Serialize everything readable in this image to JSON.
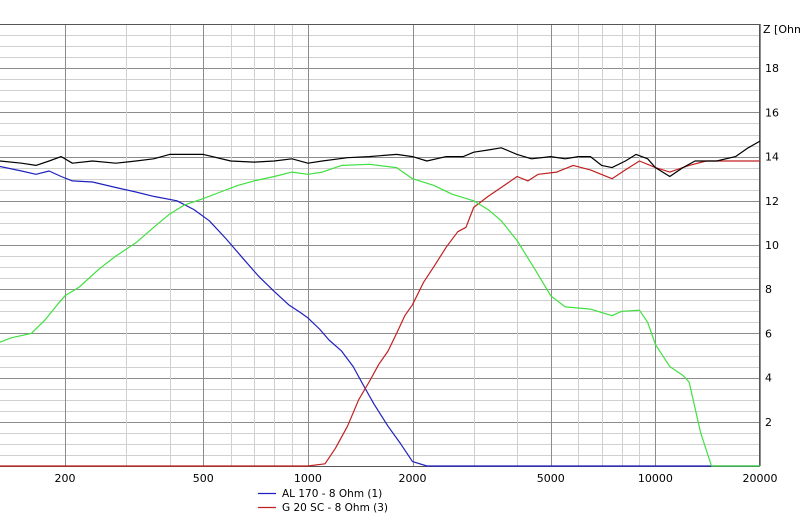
{
  "chart_data": {
    "type": "line",
    "title": "",
    "xlabel": "",
    "ylabel": "Z [Ohm]",
    "x_scale": "log",
    "xlim": [
      130,
      20000
    ],
    "ylim": [
      0,
      20
    ],
    "grid": true,
    "x_tick_labels": [
      "200",
      "500",
      "1000",
      "2000",
      "5000",
      "10000",
      "20000"
    ],
    "y_tick_labels": [
      "2",
      "4",
      "6",
      "8",
      "10",
      "12",
      "14",
      "16",
      "18"
    ],
    "legend_position": "bottom-left",
    "series": [
      {
        "name": "AL 170 - 8 Ohm (1)",
        "color": "#2020c0",
        "points": [
          [
            130,
            13.55
          ],
          [
            150,
            13.35
          ],
          [
            165,
            13.2
          ],
          [
            180,
            13.35
          ],
          [
            195,
            13.1
          ],
          [
            210,
            12.9
          ],
          [
            240,
            12.85
          ],
          [
            280,
            12.6
          ],
          [
            320,
            12.4
          ],
          [
            360,
            12.2
          ],
          [
            420,
            12.0
          ],
          [
            470,
            11.6
          ],
          [
            520,
            11.1
          ],
          [
            580,
            10.3
          ],
          [
            650,
            9.4
          ],
          [
            720,
            8.6
          ],
          [
            800,
            7.9
          ],
          [
            880,
            7.3
          ],
          [
            950,
            6.95
          ],
          [
            1000,
            6.7
          ],
          [
            1080,
            6.2
          ],
          [
            1150,
            5.7
          ],
          [
            1250,
            5.2
          ],
          [
            1350,
            4.5
          ],
          [
            1450,
            3.6
          ],
          [
            1550,
            2.8
          ],
          [
            1700,
            1.8
          ],
          [
            1850,
            1.0
          ],
          [
            2000,
            0.2
          ],
          [
            2200,
            0
          ],
          [
            20000,
            0
          ]
        ]
      },
      {
        "name": "G 20 SC - 8 Ohm (3)",
        "color": "#c02020",
        "points": [
          [
            130,
            0
          ],
          [
            1000,
            0
          ],
          [
            1120,
            0.1
          ],
          [
            1200,
            0.8
          ],
          [
            1300,
            1.8
          ],
          [
            1400,
            3.0
          ],
          [
            1500,
            3.8
          ],
          [
            1600,
            4.6
          ],
          [
            1700,
            5.2
          ],
          [
            1800,
            6.0
          ],
          [
            1900,
            6.8
          ],
          [
            2000,
            7.3
          ],
          [
            2150,
            8.3
          ],
          [
            2300,
            9.0
          ],
          [
            2500,
            9.9
          ],
          [
            2700,
            10.6
          ],
          [
            2850,
            10.8
          ],
          [
            3000,
            11.7
          ],
          [
            3300,
            12.2
          ],
          [
            3600,
            12.6
          ],
          [
            4000,
            13.1
          ],
          [
            4300,
            12.9
          ],
          [
            4600,
            13.2
          ],
          [
            5200,
            13.3
          ],
          [
            5800,
            13.6
          ],
          [
            6500,
            13.4
          ],
          [
            7500,
            13.0
          ],
          [
            8200,
            13.4
          ],
          [
            9000,
            13.8
          ],
          [
            10000,
            13.5
          ],
          [
            11000,
            13.3
          ],
          [
            12500,
            13.6
          ],
          [
            14000,
            13.8
          ],
          [
            20000,
            13.8
          ]
        ]
      },
      {
        "name": "",
        "color": "#40e040",
        "points": [
          [
            130,
            5.6
          ],
          [
            140,
            5.8
          ],
          [
            150,
            5.9
          ],
          [
            160,
            6.0
          ],
          [
            175,
            6.6
          ],
          [
            190,
            7.3
          ],
          [
            200,
            7.7
          ],
          [
            220,
            8.1
          ],
          [
            250,
            8.9
          ],
          [
            280,
            9.5
          ],
          [
            320,
            10.1
          ],
          [
            360,
            10.8
          ],
          [
            400,
            11.4
          ],
          [
            440,
            11.8
          ],
          [
            500,
            12.1
          ],
          [
            560,
            12.4
          ],
          [
            630,
            12.7
          ],
          [
            700,
            12.9
          ],
          [
            800,
            13.1
          ],
          [
            900,
            13.3
          ],
          [
            1000,
            13.2
          ],
          [
            1100,
            13.3
          ],
          [
            1250,
            13.6
          ],
          [
            1500,
            13.65
          ],
          [
            1800,
            13.5
          ],
          [
            2000,
            13.0
          ],
          [
            2300,
            12.7
          ],
          [
            2600,
            12.3
          ],
          [
            3000,
            12.0
          ],
          [
            3300,
            11.6
          ],
          [
            3600,
            11.1
          ],
          [
            4000,
            10.2
          ],
          [
            4500,
            8.9
          ],
          [
            5000,
            7.7
          ],
          [
            5500,
            7.2
          ],
          [
            6500,
            7.1
          ],
          [
            7500,
            6.8
          ],
          [
            8000,
            7.0
          ],
          [
            9000,
            7.05
          ],
          [
            9500,
            6.5
          ],
          [
            10000,
            5.5
          ],
          [
            11000,
            4.5
          ],
          [
            12000,
            4.1
          ],
          [
            12500,
            3.8
          ],
          [
            13500,
            1.5
          ],
          [
            14500,
            0
          ],
          [
            20000,
            0
          ]
        ]
      },
      {
        "name": "",
        "color": "#000000",
        "points": [
          [
            130,
            13.8
          ],
          [
            150,
            13.7
          ],
          [
            165,
            13.6
          ],
          [
            180,
            13.8
          ],
          [
            195,
            14.0
          ],
          [
            210,
            13.7
          ],
          [
            240,
            13.8
          ],
          [
            280,
            13.7
          ],
          [
            320,
            13.8
          ],
          [
            360,
            13.9
          ],
          [
            400,
            14.1
          ],
          [
            500,
            14.1
          ],
          [
            600,
            13.8
          ],
          [
            700,
            13.75
          ],
          [
            800,
            13.8
          ],
          [
            900,
            13.9
          ],
          [
            1000,
            13.7
          ],
          [
            1100,
            13.8
          ],
          [
            1300,
            13.95
          ],
          [
            1500,
            14.0
          ],
          [
            1800,
            14.1
          ],
          [
            2000,
            14.0
          ],
          [
            2200,
            13.8
          ],
          [
            2500,
            14.0
          ],
          [
            2800,
            14.0
          ],
          [
            3000,
            14.2
          ],
          [
            3300,
            14.3
          ],
          [
            3600,
            14.4
          ],
          [
            4000,
            14.1
          ],
          [
            4400,
            13.9
          ],
          [
            5000,
            14.0
          ],
          [
            5500,
            13.9
          ],
          [
            6000,
            14.0
          ],
          [
            6500,
            14.0
          ],
          [
            7000,
            13.6
          ],
          [
            7500,
            13.5
          ],
          [
            8200,
            13.8
          ],
          [
            8800,
            14.1
          ],
          [
            9500,
            13.9
          ],
          [
            10000,
            13.5
          ],
          [
            11000,
            13.1
          ],
          [
            12000,
            13.5
          ],
          [
            13000,
            13.8
          ],
          [
            15000,
            13.8
          ],
          [
            17000,
            14.0
          ],
          [
            18500,
            14.4
          ],
          [
            20000,
            14.7
          ]
        ]
      }
    ]
  }
}
